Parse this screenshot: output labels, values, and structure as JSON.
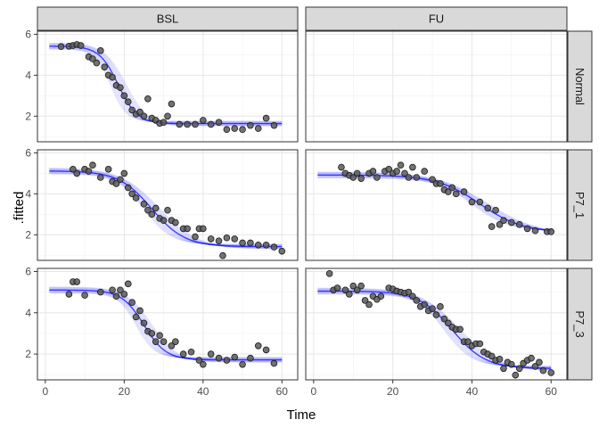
{
  "chart_data": {
    "type": "scatter",
    "xlabel": "Time",
    "ylabel": ".fitted",
    "xlim": [
      -2,
      64
    ],
    "ylim": [
      0.75,
      6.15
    ],
    "x_ticks": [
      0,
      20,
      40,
      60
    ],
    "y_ticks": [
      2,
      4,
      6
    ],
    "columns": [
      "BSL",
      "FU"
    ],
    "rows": [
      "Normal",
      "P7_1",
      "P7_3"
    ],
    "grid": true,
    "colors": {
      "points": "#595959",
      "curves": "#0000ff",
      "strip": "#d9d9d9"
    },
    "panels": [
      {
        "row": "Normal",
        "column": "BSL",
        "fit": {
          "start": 1,
          "end": 60,
          "upper": 5.42,
          "lower": 1.64,
          "mid": 18.5,
          "scale": 2.4
        },
        "points": [
          [
            4,
            5.4
          ],
          [
            6,
            5.42
          ],
          [
            7,
            5.45
          ],
          [
            8,
            5.5
          ],
          [
            9,
            5.45
          ],
          [
            11,
            4.9
          ],
          [
            12,
            4.8
          ],
          [
            13,
            4.6
          ],
          [
            14,
            5.2
          ],
          [
            15,
            4.4
          ],
          [
            16,
            4.0
          ],
          [
            17,
            3.9
          ],
          [
            18,
            3.5
          ],
          [
            19,
            3.4
          ],
          [
            20,
            3.0
          ],
          [
            21,
            2.7
          ],
          [
            22,
            2.3
          ],
          [
            23,
            2.1
          ],
          [
            24,
            2.2
          ],
          [
            25,
            2.0
          ],
          [
            26,
            2.85
          ],
          [
            27,
            1.9
          ],
          [
            28,
            1.8
          ],
          [
            29,
            1.65
          ],
          [
            30,
            1.7
          ],
          [
            31,
            2.0
          ],
          [
            32,
            2.6
          ],
          [
            34,
            1.6
          ],
          [
            36,
            1.6
          ],
          [
            38,
            1.6
          ],
          [
            40,
            1.8
          ],
          [
            42,
            1.6
          ],
          [
            44,
            1.7
          ],
          [
            46,
            1.35
          ],
          [
            48,
            1.4
          ],
          [
            50,
            1.35
          ],
          [
            52,
            1.55
          ],
          [
            54,
            1.4
          ],
          [
            56,
            1.9
          ],
          [
            58,
            1.55
          ]
        ]
      },
      {
        "row": "Normal",
        "column": "FU",
        "fit": null,
        "points": []
      },
      {
        "row": "P7_1",
        "column": "BSL",
        "fit": {
          "start": 1,
          "end": 60,
          "upper": 5.12,
          "lower": 1.42,
          "mid": 27,
          "scale": 4.2
        },
        "points": [
          [
            7,
            5.2
          ],
          [
            8,
            5.0
          ],
          [
            10,
            5.2
          ],
          [
            11,
            5.1
          ],
          [
            12,
            5.4
          ],
          [
            14,
            4.8
          ],
          [
            16,
            5.2
          ],
          [
            17,
            4.6
          ],
          [
            18,
            4.5
          ],
          [
            19,
            4.7
          ],
          [
            20,
            5.0
          ],
          [
            21,
            4.3
          ],
          [
            22,
            4.0
          ],
          [
            23,
            3.8
          ],
          [
            25,
            3.5
          ],
          [
            26,
            3.2
          ],
          [
            27,
            3.0
          ],
          [
            28,
            3.3
          ],
          [
            29,
            2.8
          ],
          [
            30,
            2.7
          ],
          [
            31,
            3.2
          ],
          [
            32,
            2.7
          ],
          [
            33,
            2.6
          ],
          [
            35,
            2.3
          ],
          [
            36,
            2.3
          ],
          [
            38,
            1.9
          ],
          [
            39,
            2.3
          ],
          [
            40,
            2.3
          ],
          [
            42,
            1.8
          ],
          [
            44,
            1.7
          ],
          [
            45,
            0.98
          ],
          [
            46,
            1.85
          ],
          [
            48,
            1.8
          ],
          [
            50,
            1.6
          ],
          [
            52,
            1.6
          ],
          [
            54,
            1.5
          ],
          [
            56,
            1.5
          ],
          [
            58,
            1.4
          ],
          [
            60,
            1.2
          ]
        ]
      },
      {
        "row": "P7_1",
        "column": "FU",
        "fit": {
          "start": 1,
          "end": 60,
          "upper": 4.92,
          "lower": 2.1,
          "mid": 42,
          "scale": 5.5
        },
        "points": [
          [
            7,
            5.3
          ],
          [
            8,
            5.0
          ],
          [
            9,
            4.9
          ],
          [
            10,
            4.8
          ],
          [
            11,
            5.0
          ],
          [
            12,
            4.75
          ],
          [
            14,
            5.0
          ],
          [
            15,
            5.1
          ],
          [
            16,
            4.8
          ],
          [
            18,
            5.1
          ],
          [
            19,
            5.2
          ],
          [
            20,
            5.0
          ],
          [
            21,
            5.1
          ],
          [
            22,
            5.4
          ],
          [
            23,
            5.0
          ],
          [
            24,
            4.8
          ],
          [
            25,
            5.3
          ],
          [
            26,
            4.8
          ],
          [
            28,
            5.1
          ],
          [
            30,
            4.7
          ],
          [
            31,
            4.5
          ],
          [
            32,
            4.5
          ],
          [
            33,
            4.2
          ],
          [
            34,
            4.1
          ],
          [
            35,
            4.3
          ],
          [
            36,
            4.0
          ],
          [
            38,
            4.1
          ],
          [
            40,
            3.6
          ],
          [
            42,
            3.6
          ],
          [
            44,
            3.3
          ],
          [
            45,
            2.4
          ],
          [
            46,
            3.2
          ],
          [
            47,
            2.5
          ],
          [
            48,
            2.7
          ],
          [
            50,
            2.6
          ],
          [
            52,
            2.5
          ],
          [
            54,
            2.3
          ],
          [
            56,
            2.2
          ],
          [
            59,
            2.15
          ],
          [
            60,
            2.15
          ]
        ]
      },
      {
        "row": "P7_3",
        "column": "BSL",
        "fit": {
          "start": 1,
          "end": 60,
          "upper": 5.1,
          "lower": 1.72,
          "mid": 25,
          "scale": 2.8
        },
        "points": [
          [
            6,
            4.9
          ],
          [
            7,
            5.5
          ],
          [
            8,
            5.5
          ],
          [
            10,
            4.85
          ],
          [
            14,
            5.0
          ],
          [
            17,
            5.1
          ],
          [
            18,
            4.8
          ],
          [
            19,
            5.1
          ],
          [
            20,
            4.9
          ],
          [
            21,
            5.4
          ],
          [
            22,
            4.5
          ],
          [
            23,
            3.8
          ],
          [
            24,
            4.1
          ],
          [
            25,
            3.5
          ],
          [
            26,
            3.1
          ],
          [
            27,
            3.0
          ],
          [
            28,
            2.6
          ],
          [
            29,
            2.9
          ],
          [
            30,
            2.6
          ],
          [
            32,
            2.4
          ],
          [
            33,
            2.6
          ],
          [
            35,
            2.0
          ],
          [
            37,
            2.1
          ],
          [
            39,
            1.7
          ],
          [
            40,
            1.5
          ],
          [
            42,
            2.0
          ],
          [
            44,
            1.8
          ],
          [
            46,
            1.7
          ],
          [
            48,
            1.85
          ],
          [
            50,
            1.5
          ],
          [
            52,
            1.8
          ],
          [
            54,
            2.4
          ],
          [
            56,
            2.2
          ],
          [
            58,
            1.55
          ]
        ]
      },
      {
        "row": "P7_3",
        "column": "FU",
        "fit": {
          "start": 1,
          "end": 60,
          "upper": 5.05,
          "lower": 1.3,
          "mid": 35,
          "scale": 4.2
        },
        "points": [
          [
            4,
            5.9
          ],
          [
            5,
            5.1
          ],
          [
            6,
            5.2
          ],
          [
            8,
            5.1
          ],
          [
            9,
            4.9
          ],
          [
            10,
            5.3
          ],
          [
            11,
            5.1
          ],
          [
            12,
            5.3
          ],
          [
            13,
            4.6
          ],
          [
            14,
            4.4
          ],
          [
            15,
            4.8
          ],
          [
            16,
            4.65
          ],
          [
            17,
            4.8
          ],
          [
            19,
            5.2
          ],
          [
            20,
            5.15
          ],
          [
            21,
            5.05
          ],
          [
            22,
            5.0
          ],
          [
            23,
            4.95
          ],
          [
            24,
            5.0
          ],
          [
            25,
            4.8
          ],
          [
            26,
            4.6
          ],
          [
            27,
            4.3
          ],
          [
            28,
            4.4
          ],
          [
            29,
            4.1
          ],
          [
            30,
            4.2
          ],
          [
            31,
            3.9
          ],
          [
            32,
            4.3
          ],
          [
            33,
            3.7
          ],
          [
            34,
            3.5
          ],
          [
            35,
            3.3
          ],
          [
            36,
            3.2
          ],
          [
            37,
            3.2
          ],
          [
            38,
            2.6
          ],
          [
            39,
            2.6
          ],
          [
            40,
            2.4
          ],
          [
            41,
            2.5
          ],
          [
            42,
            2.5
          ],
          [
            43,
            2.1
          ],
          [
            44,
            2.0
          ],
          [
            45,
            1.9
          ],
          [
            46,
            1.7
          ],
          [
            47,
            1.75
          ],
          [
            48,
            1.3
          ],
          [
            49,
            1.6
          ],
          [
            50,
            1.5
          ],
          [
            51,
            0.98
          ],
          [
            52,
            1.3
          ],
          [
            53,
            1.55
          ],
          [
            54,
            1.7
          ],
          [
            55,
            1.8
          ],
          [
            56,
            1.4
          ],
          [
            57,
            1.6
          ],
          [
            58,
            1.2
          ],
          [
            60,
            1.1
          ]
        ]
      }
    ]
  }
}
